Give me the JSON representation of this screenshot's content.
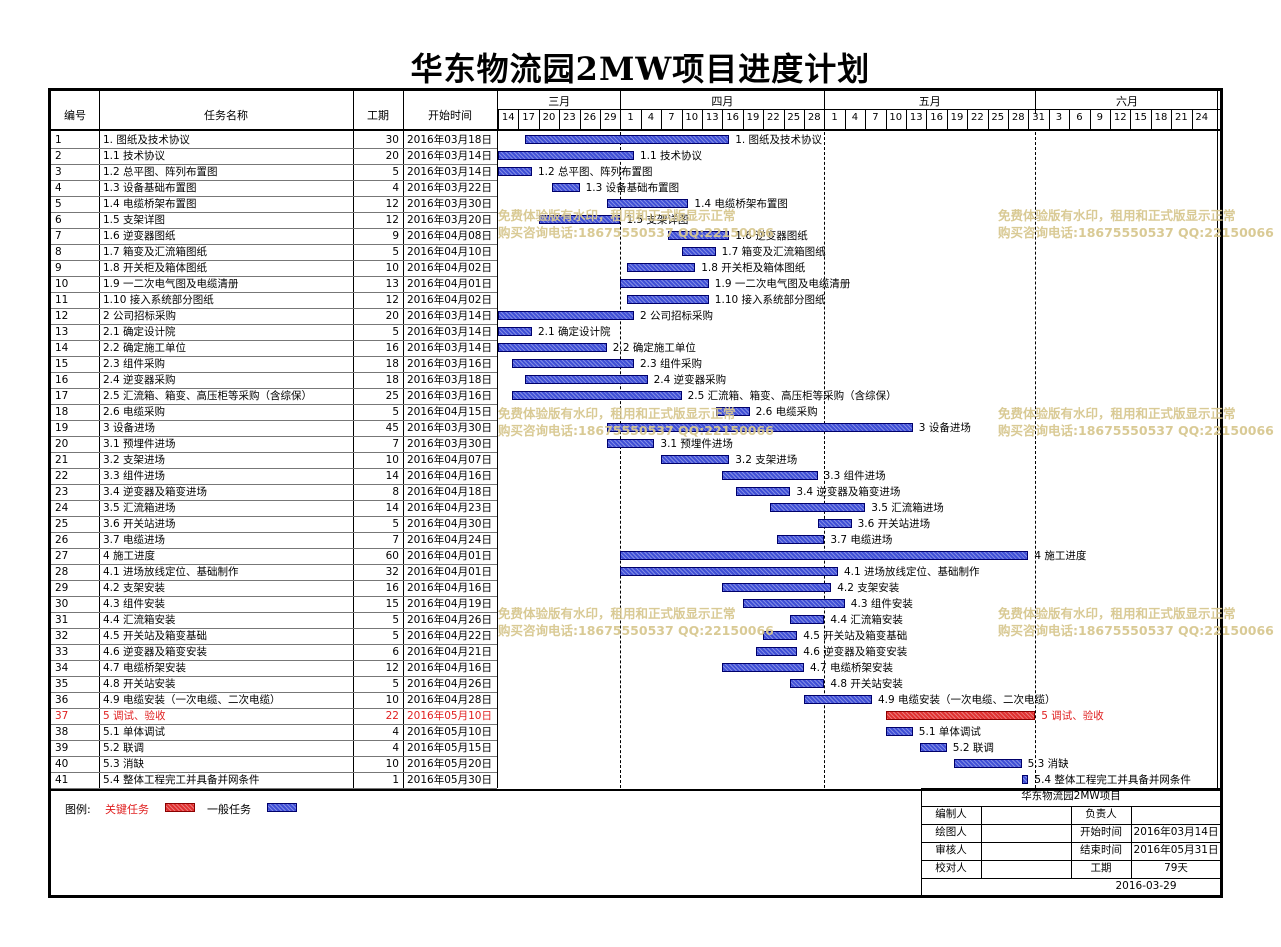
{
  "title": "华东物流园2MW项目进度计划",
  "header": {
    "id": "编号",
    "name": "任务名称",
    "duration": "工期",
    "start": "开始时间",
    "months": [
      "三月",
      "四月",
      "五月",
      "六月"
    ],
    "days": [
      "14",
      "17",
      "20",
      "23",
      "26",
      "29",
      "1",
      "4",
      "7",
      "10",
      "13",
      "16",
      "19",
      "22",
      "25",
      "28",
      "1",
      "4",
      "7",
      "10",
      "13",
      "16",
      "19",
      "22",
      "25",
      "28",
      "31",
      "3",
      "6",
      "9",
      "12",
      "15",
      "18",
      "21",
      "24"
    ]
  },
  "chart_data": {
    "type": "gantt",
    "title": "华东物流园2MW项目进度计划",
    "x_start": "2016-03-14",
    "tasks": [
      {
        "id": "1",
        "name": "1. 图纸及技术协议",
        "duration": 30,
        "start": "2016年03月18日",
        "bar": "1. 图纸及技术协议",
        "critical": false
      },
      {
        "id": "2",
        "name": "1.1 技术协议",
        "duration": 20,
        "start": "2016年03月14日",
        "bar": "1.1 技术协议",
        "critical": false
      },
      {
        "id": "3",
        "name": "1.2 总平图、阵列布置图",
        "duration": 5,
        "start": "2016年03月14日",
        "bar": "1.2 总平图、阵列布置图",
        "critical": false
      },
      {
        "id": "4",
        "name": "1.3 设备基础布置图",
        "duration": 4,
        "start": "2016年03月22日",
        "bar": "1.3 设备基础布置图",
        "critical": false
      },
      {
        "id": "5",
        "name": "1.4 电缆桥架布置图",
        "duration": 12,
        "start": "2016年03月30日",
        "bar": "1.4 电缆桥架布置图",
        "critical": false
      },
      {
        "id": "6",
        "name": "1.5 支架详图",
        "duration": 12,
        "start": "2016年03月20日",
        "bar": "1.5 支架详图",
        "critical": false
      },
      {
        "id": "7",
        "name": "1.6 逆变器图纸",
        "duration": 9,
        "start": "2016年04月08日",
        "bar": "1.6 逆变器图纸",
        "critical": false
      },
      {
        "id": "8",
        "name": "1.7 箱变及汇流箱图纸",
        "duration": 5,
        "start": "2016年04月10日",
        "bar": "1.7 箱变及汇流箱图纸",
        "critical": false
      },
      {
        "id": "9",
        "name": "1.8 开关柜及箱体图纸",
        "duration": 10,
        "start": "2016年04月02日",
        "bar": "1.8 开关柜及箱体图纸",
        "critical": false
      },
      {
        "id": "10",
        "name": "1.9 一二次电气图及电缆清册",
        "duration": 13,
        "start": "2016年04月01日",
        "bar": "1.9 一二次电气图及电缆清册",
        "critical": false
      },
      {
        "id": "11",
        "name": "1.10 接入系统部分图纸",
        "duration": 12,
        "start": "2016年04月02日",
        "bar": "1.10 接入系统部分图纸",
        "critical": false
      },
      {
        "id": "12",
        "name": "2 公司招标采购",
        "duration": 20,
        "start": "2016年03月14日",
        "bar": "2 公司招标采购",
        "critical": false
      },
      {
        "id": "13",
        "name": "2.1 确定设计院",
        "duration": 5,
        "start": "2016年03月14日",
        "bar": "2.1 确定设计院",
        "critical": false
      },
      {
        "id": "14",
        "name": "2.2 确定施工单位",
        "duration": 16,
        "start": "2016年03月14日",
        "bar": "2.2 确定施工单位",
        "critical": false
      },
      {
        "id": "15",
        "name": "2.3 组件采购",
        "duration": 18,
        "start": "2016年03月16日",
        "bar": "2.3 组件采购",
        "critical": false
      },
      {
        "id": "16",
        "name": "2.4 逆变器采购",
        "duration": 18,
        "start": "2016年03月18日",
        "bar": "2.4 逆变器采购",
        "critical": false
      },
      {
        "id": "17",
        "name": "2.5 汇流箱、箱变、高压柜等采购（含综保）",
        "duration": 25,
        "start": "2016年03月16日",
        "bar": "2.5 汇流箱、箱变、高压柜等采购（含综保）",
        "critical": false
      },
      {
        "id": "18",
        "name": "2.6 电缆采购",
        "duration": 5,
        "start": "2016年04月15日",
        "bar": "2.6 电缆采购",
        "critical": false
      },
      {
        "id": "19",
        "name": "3 设备进场",
        "duration": 45,
        "start": "2016年03月30日",
        "bar": "3 设备进场",
        "critical": false
      },
      {
        "id": "20",
        "name": "3.1 预埋件进场",
        "duration": 7,
        "start": "2016年03月30日",
        "bar": "3.1 预埋件进场",
        "critical": false
      },
      {
        "id": "21",
        "name": "3.2 支架进场",
        "duration": 10,
        "start": "2016年04月07日",
        "bar": "3.2 支架进场",
        "critical": false
      },
      {
        "id": "22",
        "name": "3.3 组件进场",
        "duration": 14,
        "start": "2016年04月16日",
        "bar": "3.3 组件进场",
        "critical": false
      },
      {
        "id": "23",
        "name": "3.4 逆变器及箱变进场",
        "duration": 8,
        "start": "2016年04月18日",
        "bar": "3.4 逆变器及箱变进场",
        "critical": false
      },
      {
        "id": "24",
        "name": "3.5 汇流箱进场",
        "duration": 14,
        "start": "2016年04月23日",
        "bar": "3.5 汇流箱进场",
        "critical": false
      },
      {
        "id": "25",
        "name": "3.6 开关站进场",
        "duration": 5,
        "start": "2016年04月30日",
        "bar": "3.6 开关站进场",
        "critical": false
      },
      {
        "id": "26",
        "name": "3.7 电缆进场",
        "duration": 7,
        "start": "2016年04月24日",
        "bar": "3.7 电缆进场",
        "critical": false
      },
      {
        "id": "27",
        "name": "4 施工进度",
        "duration": 60,
        "start": "2016年04月01日",
        "bar": "4 施工进度",
        "critical": false
      },
      {
        "id": "28",
        "name": "4.1 进场放线定位、基础制作",
        "duration": 32,
        "start": "2016年04月01日",
        "bar": "4.1 进场放线定位、基础制作",
        "critical": false
      },
      {
        "id": "29",
        "name": "4.2 支架安装",
        "duration": 16,
        "start": "2016年04月16日",
        "bar": "4.2 支架安装",
        "critical": false
      },
      {
        "id": "30",
        "name": "4.3 组件安装",
        "duration": 15,
        "start": "2016年04月19日",
        "bar": "4.3 组件安装",
        "critical": false
      },
      {
        "id": "31",
        "name": "4.4 汇流箱安装",
        "duration": 5,
        "start": "2016年04月26日",
        "bar": "4.4 汇流箱安装",
        "critical": false
      },
      {
        "id": "32",
        "name": "4.5 开关站及箱变基础",
        "duration": 5,
        "start": "2016年04月22日",
        "bar": "4.5 开关站及箱变基础",
        "critical": false
      },
      {
        "id": "33",
        "name": "4.6 逆变器及箱变安装",
        "duration": 6,
        "start": "2016年04月21日",
        "bar": "4.6 逆变器及箱变安装",
        "critical": false
      },
      {
        "id": "34",
        "name": "4.7 电缆桥架安装",
        "duration": 12,
        "start": "2016年04月16日",
        "bar": "4.7 电缆桥架安装",
        "critical": false
      },
      {
        "id": "35",
        "name": "4.8 开关站安装",
        "duration": 5,
        "start": "2016年04月26日",
        "bar": "4.8 开关站安装",
        "critical": false
      },
      {
        "id": "36",
        "name": "4.9 电缆安装（一次电缆、二次电缆）",
        "duration": 10,
        "start": "2016年04月28日",
        "bar": "4.9 电缆安装（一次电缆、二次电缆）",
        "critical": false
      },
      {
        "id": "37",
        "name": "5 调试、验收",
        "duration": 22,
        "start": "2016年05月10日",
        "bar": "5 调试、验收",
        "critical": true
      },
      {
        "id": "38",
        "name": "5.1 单体调试",
        "duration": 4,
        "start": "2016年05月10日",
        "bar": "5.1 单体调试",
        "critical": false
      },
      {
        "id": "39",
        "name": "5.2 联调",
        "duration": 4,
        "start": "2016年05月15日",
        "bar": "5.2 联调",
        "critical": false
      },
      {
        "id": "40",
        "name": "5.3 消缺",
        "duration": 10,
        "start": "2016年05月20日",
        "bar": "5.3 消缺",
        "critical": false
      },
      {
        "id": "41",
        "name": "5.4 整体工程完工并具备并网条件",
        "duration": 1,
        "start": "2016年05月30日",
        "bar": "5.4 整体工程完工并具备并网条件",
        "critical": false
      }
    ]
  },
  "watermark": {
    "line1": "免费体验版有水印，租用和正式版显示正常",
    "line2": "购买咨询电话:18675550537 QQ:22150066"
  },
  "legend": {
    "label": "图例:",
    "critical": "关键任务",
    "normal": "一般任务",
    "critical_color": "#e03030",
    "normal_color": "#3f4fd6"
  },
  "title_block": {
    "project": "华东物流园2MW项目",
    "compiler_label": "编制人",
    "compiler": "",
    "owner_label": "负责人",
    "owner": "",
    "drawer_label": "绘图人",
    "start_label": "开始时间",
    "start": "2016年03月14日",
    "reviewer_label": "审核人",
    "end_label": "结束时间",
    "end": "2016年05月31日",
    "checker_label": "校对人",
    "duration_label": "工期",
    "duration": "79天",
    "date": "2016-03-29"
  }
}
